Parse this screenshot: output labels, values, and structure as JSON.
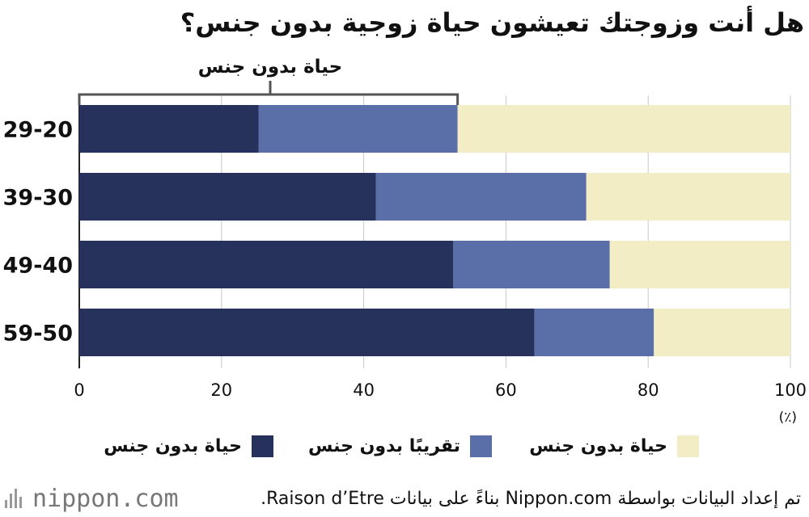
{
  "title": "هل أنت وزوجتك تعيشون حياة زوجية بدون جنس؟",
  "bracket_label": "حياة بدون جنس",
  "legend": [
    {
      "label": "حياة بدون جنس",
      "color": "#26325b"
    },
    {
      "label": "تقريبًا بدون جنس",
      "color": "#5a6ea8"
    },
    {
      "label": "حياة بدون جنس",
      "color": "#f2edc4"
    }
  ],
  "unit_label": "(٪)",
  "footer": {
    "logo_text": "nippon.com",
    "source": "تم إعداد البيانات بواسطة Nippon.com بناءً على بيانات Raison d’Etre."
  },
  "chart_data": {
    "type": "bar",
    "orientation": "horizontal",
    "stacked": true,
    "categories": [
      "29-20",
      "39-30",
      "49-40",
      "59-50"
    ],
    "series": [
      {
        "name": "حياة بدون جنس",
        "color": "#26325b",
        "values": [
          25.2,
          41.7,
          52.6,
          64.0
        ]
      },
      {
        "name": "تقريبًا بدون جنس",
        "color": "#5a6ea8",
        "values": [
          28.0,
          29.6,
          22.0,
          16.8
        ]
      },
      {
        "name": "حياة بدون جنس",
        "color": "#f2edc4",
        "values": [
          46.8,
          28.7,
          25.4,
          19.2
        ]
      }
    ],
    "xlim": [
      0,
      100
    ],
    "xticks": [
      0,
      20,
      40,
      60,
      80,
      100
    ],
    "grid": true,
    "legend_position": "bottom"
  }
}
